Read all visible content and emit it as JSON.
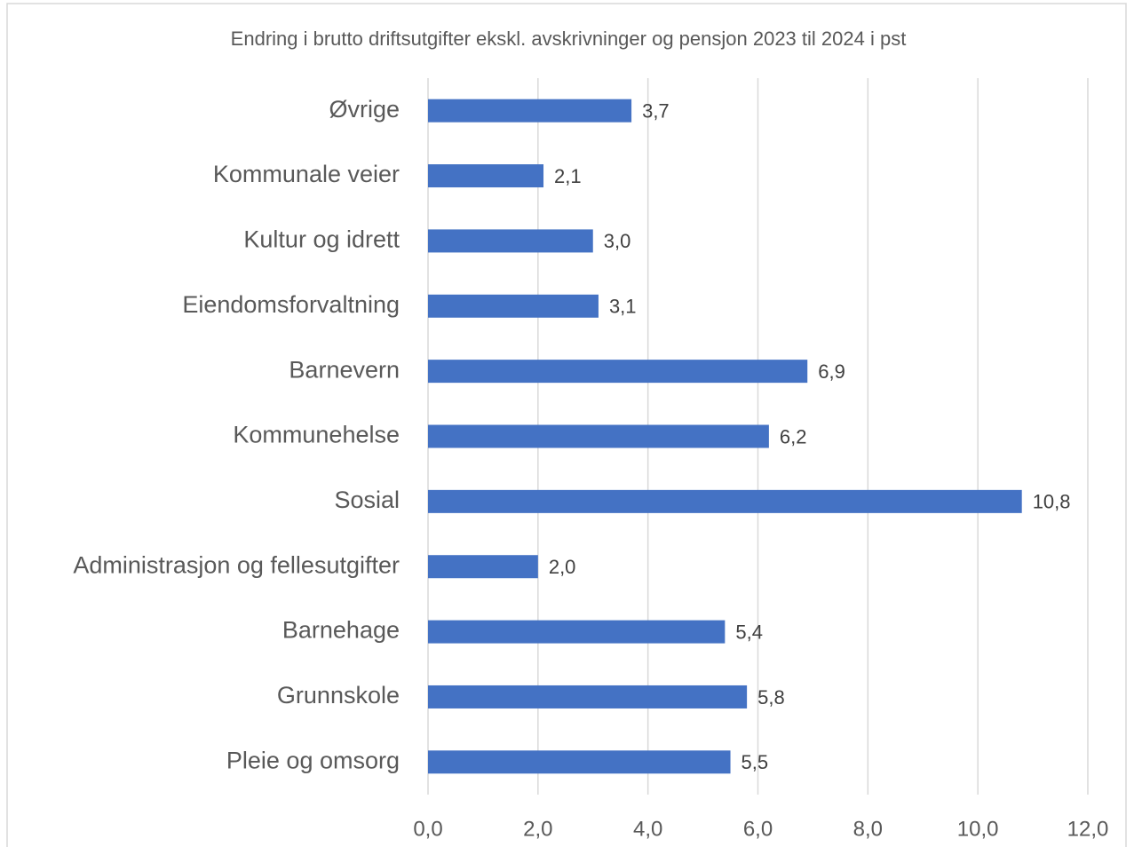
{
  "chart_data": {
    "type": "bar",
    "orientation": "horizontal",
    "title": "Endring i brutto driftsutgifter ekskl. avskrivninger og pensjon 2023 til 2024 i pst",
    "categories": [
      "Øvrige",
      "Kommunale veier",
      "Kultur og idrett",
      "Eiendomsforvaltning",
      "Barnevern",
      "Kommunehelse",
      "Sosial",
      "Administrasjon og fellesutgifter",
      "Barnehage",
      "Grunnskole",
      "Pleie og omsorg"
    ],
    "values": [
      3.7,
      2.1,
      3.0,
      3.1,
      6.9,
      6.2,
      10.8,
      2.0,
      5.4,
      5.8,
      5.5
    ],
    "value_labels": [
      "3,7",
      "2,1",
      "3,0",
      "3,1",
      "6,9",
      "6,2",
      "10,8",
      "2,0",
      "5,4",
      "5,8",
      "5,5"
    ],
    "color": "#4472c4",
    "xlim": [
      0,
      12
    ],
    "xticks": [
      {
        "value": 0,
        "label": "0,0"
      },
      {
        "value": 2,
        "label": "2,0"
      },
      {
        "value": 4,
        "label": "4,0"
      },
      {
        "value": 6,
        "label": "6,0"
      },
      {
        "value": 8,
        "label": "8,0"
      },
      {
        "value": 10,
        "label": "10,0"
      },
      {
        "value": 12,
        "label": "12,0"
      }
    ],
    "grid": true
  }
}
